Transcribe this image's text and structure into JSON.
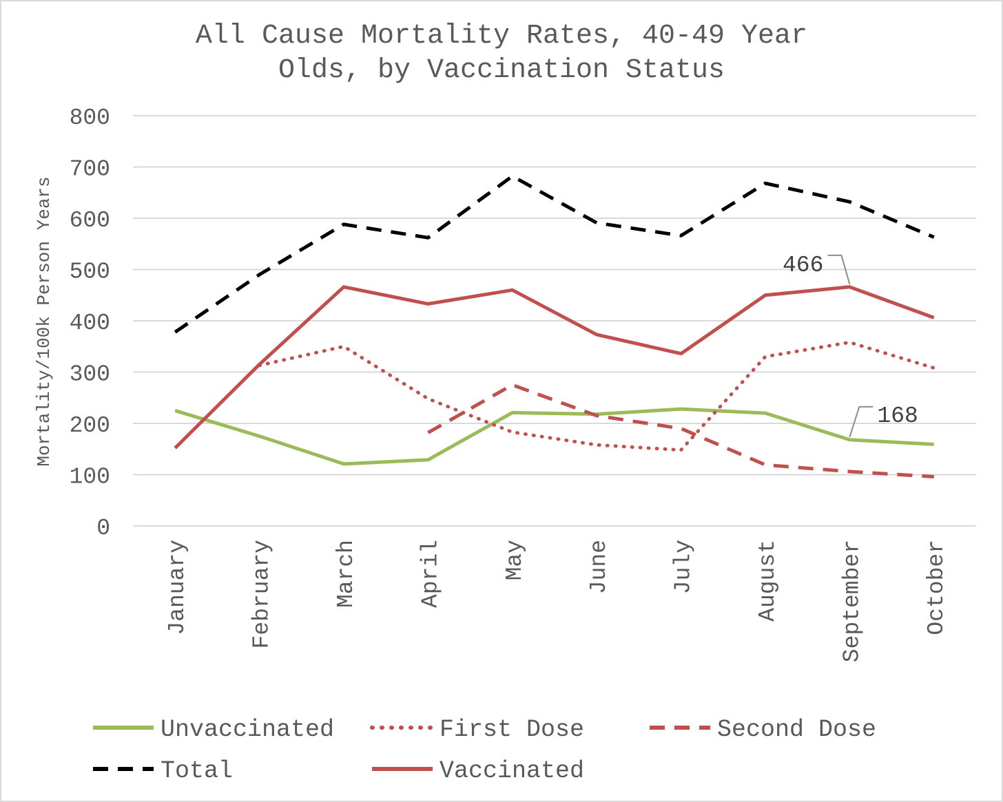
{
  "chart_data": {
    "type": "line",
    "title_lines": [
      "All Cause Mortality Rates, 40-49 Year",
      "Olds, by Vaccination Status"
    ],
    "xlabel": "",
    "ylabel": "Mortality/100k Person Years",
    "ylim": [
      0,
      800
    ],
    "yticks": [
      "0",
      "100",
      "200",
      "300",
      "400",
      "500",
      "600",
      "700",
      "800"
    ],
    "categories": [
      "January",
      "February",
      "March",
      "April",
      "May",
      "June",
      "July",
      "August",
      "September",
      "October"
    ],
    "grid": "horizontal",
    "legend_position": "bottom",
    "series": [
      {
        "name": "Unvaccinated",
        "color": "#9bbb59",
        "style": "solid",
        "values": [
          225,
          175,
          121,
          129,
          221,
          218,
          228,
          220,
          168,
          159
        ]
      },
      {
        "name": "First Dose",
        "color": "#c0504d",
        "style": "dotted",
        "values": [
          null,
          313,
          350,
          248,
          183,
          158,
          148,
          330,
          358,
          308
        ]
      },
      {
        "name": "Second Dose",
        "color": "#c0504d",
        "style": "dashed",
        "values": [
          null,
          null,
          null,
          182,
          275,
          215,
          190,
          119,
          106,
          96
        ]
      },
      {
        "name": "Total",
        "color": "#000000",
        "style": "dashed",
        "values": [
          378,
          490,
          588,
          562,
          682,
          591,
          566,
          668,
          632,
          563
        ]
      },
      {
        "name": "Vaccinated",
        "color": "#c0504d",
        "style": "solid",
        "values": [
          152,
          315,
          466,
          433,
          460,
          373,
          336,
          450,
          466,
          406
        ]
      }
    ],
    "annotations": [
      {
        "series": "Vaccinated",
        "category": "September",
        "text": "466"
      },
      {
        "series": "Unvaccinated",
        "category": "September",
        "text": "168"
      }
    ]
  }
}
